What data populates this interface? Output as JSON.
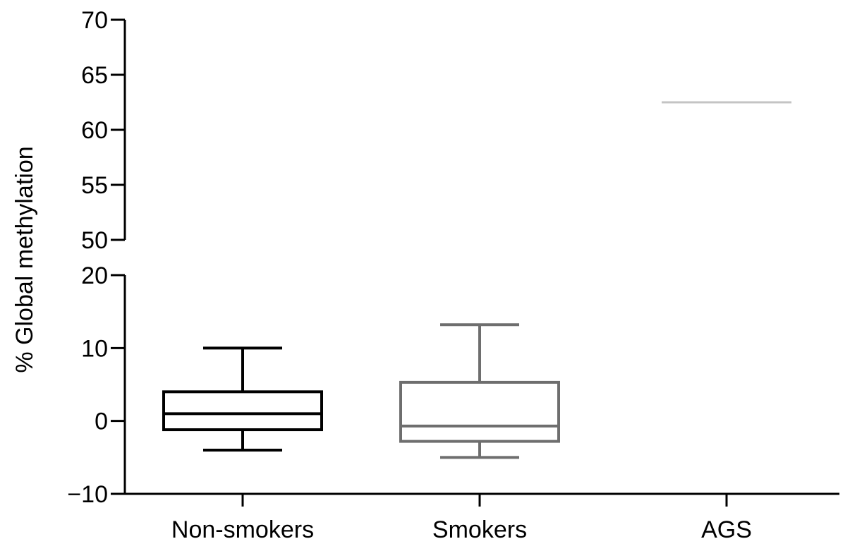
{
  "chart_data": {
    "type": "box",
    "title": "",
    "xlabel": "",
    "ylabel": "% Global methylation",
    "categories": [
      "Non-smokers",
      "Smokers",
      "AGS"
    ],
    "y_axis_segments": [
      {
        "ylim": [
          -10,
          20
        ],
        "ticks": [
          {
            "value": -10,
            "label": "−10"
          },
          {
            "value": 0,
            "label": "0"
          },
          {
            "value": 10,
            "label": "10"
          },
          {
            "value": 20,
            "label": "20"
          }
        ]
      },
      {
        "ylim": [
          50,
          70
        ],
        "ticks": [
          {
            "value": 50,
            "label": "50"
          },
          {
            "value": 55,
            "label": "55"
          },
          {
            "value": 60,
            "label": "60"
          },
          {
            "value": 65,
            "label": "65"
          },
          {
            "value": 70,
            "label": "70"
          }
        ]
      }
    ],
    "boxes": [
      {
        "category": "Non-smokers",
        "whisker_low": -4,
        "q1": -1.2,
        "median": 1,
        "q3": 4,
        "whisker_high": 10,
        "color": "#000000"
      },
      {
        "category": "Smokers",
        "whisker_low": -5,
        "q1": -2.8,
        "median": -0.7,
        "q3": 5.3,
        "whisker_high": 13.2,
        "color": "#6e6e6e"
      },
      {
        "category": "AGS",
        "value": 62.5,
        "color": "#c4c4c4"
      }
    ],
    "grid": false,
    "legend": "none"
  }
}
